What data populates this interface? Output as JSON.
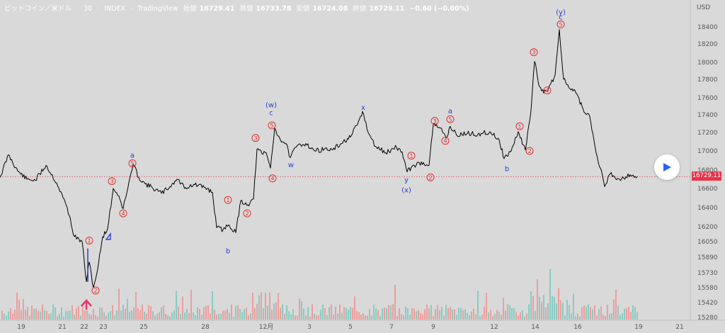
{
  "header": {
    "symbol": "ビットコイン／米ドル",
    "interval": "30",
    "exchange": "INDEX",
    "brand": "TradingView",
    "open_label": "始値",
    "open_value": "16729.41",
    "high_label": "高値",
    "high_value": "16733.78",
    "low_label": "安値",
    "low_value": "16724.08",
    "close_label": "終値",
    "close_value": "16729.11",
    "change": "−0.60 (−0.00%)"
  },
  "axis": {
    "currency": "USD",
    "last_price": "16729.11"
  },
  "colors": {
    "background": "#d9d9d9",
    "price_line": "#000000",
    "vol_up": "#6ec6b8",
    "vol_down": "#f08a8a",
    "wave_number": "#e03030",
    "wave_letter": "#2a3fd6",
    "last_price": "#e8344a",
    "entry_arrow": "#e8346a"
  },
  "chart_data": {
    "type": "line",
    "title": "",
    "xlabel": "",
    "ylabel": "USD",
    "y_ticks": [
      18400,
      18200,
      18000,
      17800,
      17600,
      17400,
      17200,
      17000,
      16800,
      16600,
      16400,
      16200,
      16050,
      15890,
      15730,
      15580,
      15420,
      15280
    ],
    "x_ticks": [
      "19",
      "21",
      "22",
      "23",
      "25",
      "28",
      "12月",
      "3",
      "5",
      "7",
      "9",
      "12",
      "14",
      "16",
      "19",
      "21"
    ],
    "ylim": [
      15280,
      18560
    ],
    "price_series": [
      {
        "x": 0,
        "y": 16720
      },
      {
        "x": 12,
        "y": 16960
      },
      {
        "x": 25,
        "y": 16790
      },
      {
        "x": 38,
        "y": 16700
      },
      {
        "x": 50,
        "y": 16690
      },
      {
        "x": 65,
        "y": 16850
      },
      {
        "x": 80,
        "y": 16660
      },
      {
        "x": 95,
        "y": 16400
      },
      {
        "x": 105,
        "y": 16100
      },
      {
        "x": 116,
        "y": 16050
      },
      {
        "x": 122,
        "y": 15640
      },
      {
        "x": 126,
        "y": 15840
      },
      {
        "x": 132,
        "y": 15580
      },
      {
        "x": 138,
        "y": 15770
      },
      {
        "x": 145,
        "y": 16100
      },
      {
        "x": 152,
        "y": 16180
      },
      {
        "x": 160,
        "y": 16600
      },
      {
        "x": 168,
        "y": 16520
      },
      {
        "x": 174,
        "y": 16390
      },
      {
        "x": 181,
        "y": 16620
      },
      {
        "x": 188,
        "y": 16860
      },
      {
        "x": 196,
        "y": 16720
      },
      {
        "x": 205,
        "y": 16650
      },
      {
        "x": 215,
        "y": 16610
      },
      {
        "x": 228,
        "y": 16550
      },
      {
        "x": 240,
        "y": 16620
      },
      {
        "x": 250,
        "y": 16700
      },
      {
        "x": 262,
        "y": 16610
      },
      {
        "x": 275,
        "y": 16640
      },
      {
        "x": 290,
        "y": 16610
      },
      {
        "x": 300,
        "y": 16560
      },
      {
        "x": 306,
        "y": 16190
      },
      {
        "x": 315,
        "y": 16170
      },
      {
        "x": 323,
        "y": 16220
      },
      {
        "x": 333,
        "y": 16140
      },
      {
        "x": 340,
        "y": 16470
      },
      {
        "x": 350,
        "y": 16430
      },
      {
        "x": 358,
        "y": 16490
      },
      {
        "x": 363,
        "y": 17020
      },
      {
        "x": 370,
        "y": 16970
      },
      {
        "x": 376,
        "y": 16980
      },
      {
        "x": 382,
        "y": 16820
      },
      {
        "x": 388,
        "y": 17250
      },
      {
        "x": 396,
        "y": 17120
      },
      {
        "x": 404,
        "y": 17080
      },
      {
        "x": 410,
        "y": 16930
      },
      {
        "x": 420,
        "y": 17060
      },
      {
        "x": 432,
        "y": 17080
      },
      {
        "x": 445,
        "y": 17000
      },
      {
        "x": 458,
        "y": 17020
      },
      {
        "x": 470,
        "y": 17010
      },
      {
        "x": 482,
        "y": 17080
      },
      {
        "x": 495,
        "y": 17150
      },
      {
        "x": 505,
        "y": 17290
      },
      {
        "x": 512,
        "y": 17440
      },
      {
        "x": 520,
        "y": 17200
      },
      {
        "x": 530,
        "y": 17050
      },
      {
        "x": 545,
        "y": 16980
      },
      {
        "x": 560,
        "y": 17040
      },
      {
        "x": 568,
        "y": 16990
      },
      {
        "x": 575,
        "y": 16780
      },
      {
        "x": 585,
        "y": 16850
      },
      {
        "x": 598,
        "y": 16880
      },
      {
        "x": 606,
        "y": 16850
      },
      {
        "x": 612,
        "y": 17290
      },
      {
        "x": 622,
        "y": 17250
      },
      {
        "x": 630,
        "y": 17140
      },
      {
        "x": 636,
        "y": 17270
      },
      {
        "x": 645,
        "y": 17170
      },
      {
        "x": 660,
        "y": 17190
      },
      {
        "x": 675,
        "y": 17180
      },
      {
        "x": 692,
        "y": 17210
      },
      {
        "x": 705,
        "y": 17120
      },
      {
        "x": 712,
        "y": 16920
      },
      {
        "x": 722,
        "y": 17000
      },
      {
        "x": 732,
        "y": 17210
      },
      {
        "x": 742,
        "y": 17010
      },
      {
        "x": 750,
        "y": 17450
      },
      {
        "x": 755,
        "y": 18010
      },
      {
        "x": 762,
        "y": 17720
      },
      {
        "x": 768,
        "y": 17650
      },
      {
        "x": 775,
        "y": 17710
      },
      {
        "x": 784,
        "y": 17850
      },
      {
        "x": 790,
        "y": 18370
      },
      {
        "x": 796,
        "y": 17800
      },
      {
        "x": 805,
        "y": 17700
      },
      {
        "x": 815,
        "y": 17640
      },
      {
        "x": 825,
        "y": 17430
      },
      {
        "x": 833,
        "y": 17380
      },
      {
        "x": 842,
        "y": 16980
      },
      {
        "x": 848,
        "y": 16820
      },
      {
        "x": 854,
        "y": 16620
      },
      {
        "x": 862,
        "y": 16760
      },
      {
        "x": 875,
        "y": 16700
      },
      {
        "x": 890,
        "y": 16750
      },
      {
        "x": 900,
        "y": 16729
      }
    ],
    "annotations": [
      {
        "text": "①",
        "kind": "num",
        "x": 126,
        "y": 16060
      },
      {
        "text": "②",
        "kind": "num",
        "x": 135,
        "y": 15550
      },
      {
        "text": "③",
        "kind": "num",
        "x": 158,
        "y": 16680
      },
      {
        "text": "④",
        "kind": "num",
        "x": 174,
        "y": 16340
      },
      {
        "text": "⑤",
        "kind": "num",
        "x": 187,
        "y": 16870
      },
      {
        "text": "a",
        "kind": "let",
        "x": 187,
        "y": 16960
      },
      {
        "text": "①",
        "kind": "num",
        "x": 322,
        "y": 16480
      },
      {
        "text": "②",
        "kind": "num",
        "x": 349,
        "y": 16340
      },
      {
        "text": "b",
        "kind": "let",
        "x": 322,
        "y": 15960
      },
      {
        "text": "③",
        "kind": "num",
        "x": 361,
        "y": 17140
      },
      {
        "text": "④",
        "kind": "num",
        "x": 385,
        "y": 16710
      },
      {
        "text": "⑤",
        "kind": "num",
        "x": 384,
        "y": 17280
      },
      {
        "text": "c",
        "kind": "let",
        "x": 383,
        "y": 17430
      },
      {
        "text": "(w)",
        "kind": "let",
        "x": 383,
        "y": 17520
      },
      {
        "text": "w",
        "kind": "let",
        "x": 411,
        "y": 16860
      },
      {
        "text": "x",
        "kind": "let",
        "x": 513,
        "y": 17490
      },
      {
        "text": "①",
        "kind": "num",
        "x": 581,
        "y": 16950
      },
      {
        "text": "②",
        "kind": "num",
        "x": 608,
        "y": 16720
      },
      {
        "text": "y",
        "kind": "let",
        "x": 574,
        "y": 16700
      },
      {
        "text": "(x)",
        "kind": "let",
        "x": 574,
        "y": 16590
      },
      {
        "text": "③",
        "kind": "num",
        "x": 614,
        "y": 17330
      },
      {
        "text": "④",
        "kind": "num",
        "x": 629,
        "y": 17110
      },
      {
        "text": "⑤",
        "kind": "num",
        "x": 636,
        "y": 17350
      },
      {
        "text": "a",
        "kind": "let",
        "x": 636,
        "y": 17450
      },
      {
        "text": "b",
        "kind": "let",
        "x": 716,
        "y": 16820
      },
      {
        "text": "①",
        "kind": "num",
        "x": 734,
        "y": 17270
      },
      {
        "text": "②",
        "kind": "num",
        "x": 748,
        "y": 17000
      },
      {
        "text": "③",
        "kind": "num",
        "x": 754,
        "y": 18110
      },
      {
        "text": "④",
        "kind": "num",
        "x": 773,
        "y": 17680
      },
      {
        "text": "⑤",
        "kind": "num",
        "x": 792,
        "y": 18430
      },
      {
        "text": "c",
        "kind": "let",
        "x": 792,
        "y": 18520
      },
      {
        "text": "(y)",
        "kind": "let",
        "x": 792,
        "y": 18580
      }
    ],
    "last_price_value": 16729.11,
    "grid": false
  }
}
